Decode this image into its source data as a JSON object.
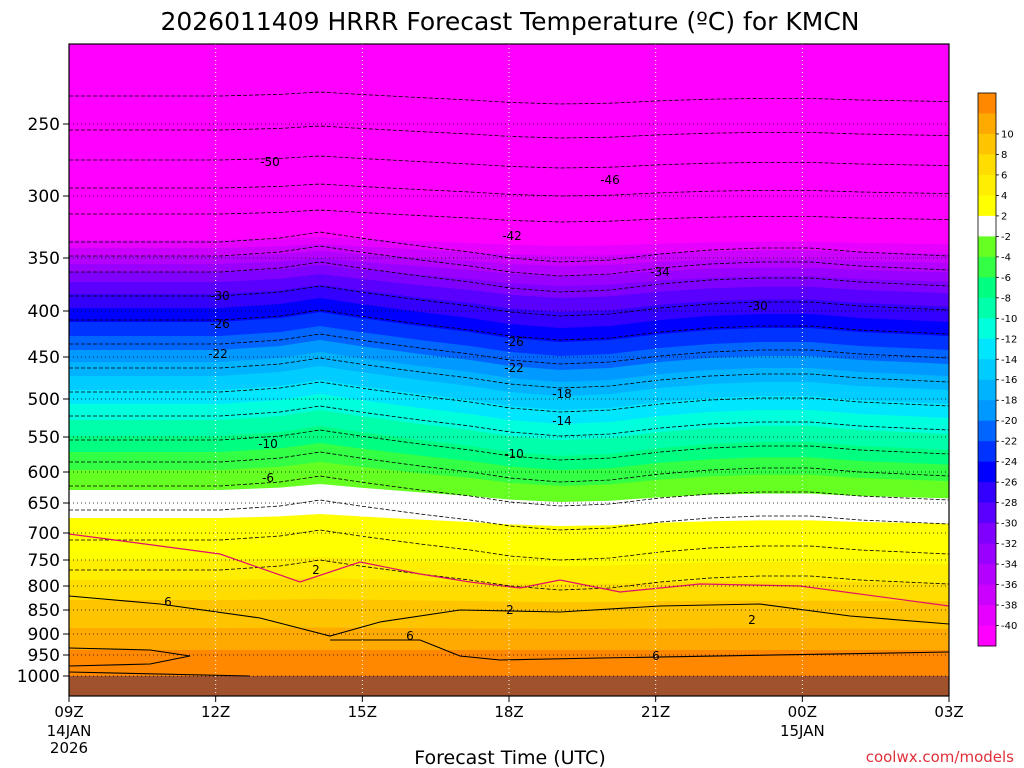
{
  "chart_data": {
    "type": "heatmap",
    "title": "2026011409 HRRR Forecast Temperature (ºC) for KMCN",
    "xlabel": "Forecast Time (UTC)",
    "ylabel": "",
    "credit": "coolwx.com/models",
    "x_ticks": [
      {
        "label": "09Z",
        "sub": [
          "14JAN",
          "2026"
        ],
        "hour": 0
      },
      {
        "label": "12Z",
        "sub": [],
        "hour": 3
      },
      {
        "label": "15Z",
        "sub": [],
        "hour": 6
      },
      {
        "label": "18Z",
        "sub": [],
        "hour": 9
      },
      {
        "label": "21Z",
        "sub": [],
        "hour": 12
      },
      {
        "label": "00Z",
        "sub": [
          "15JAN"
        ],
        "hour": 15
      },
      {
        "label": "03Z",
        "sub": [],
        "hour": 18
      }
    ],
    "y_ticks": [
      250,
      300,
      350,
      400,
      450,
      500,
      550,
      600,
      650,
      700,
      750,
      800,
      850,
      900,
      950,
      1000
    ],
    "colorbar": {
      "colors": [
        "#ff00ff",
        "#e600ff",
        "#cc00ff",
        "#b300ff",
        "#9900ff",
        "#8000ff",
        "#5a00ff",
        "#3300ff",
        "#0000ff",
        "#0033ff",
        "#0066ff",
        "#0099ff",
        "#00b3ff",
        "#00ccff",
        "#00e6ff",
        "#00ffdd",
        "#00ffaa",
        "#00ff80",
        "#33ff44",
        "#66ff22",
        "#ffffff",
        "#ffff00",
        "#ffee00",
        "#ffdd00",
        "#ffc400",
        "#ffaa00",
        "#ff8800"
      ],
      "labels": [
        "-40",
        "-38",
        "-36",
        "-34",
        "-32",
        "-30",
        "-28",
        "-26",
        "-24",
        "-22",
        "-20",
        "-18",
        "-16",
        "-14",
        "-12",
        "-10",
        "-8",
        "-6",
        "-4",
        "-2",
        "2",
        "4",
        "6",
        "8",
        "10"
      ]
    },
    "contour_labels": [
      "-50",
      "-46",
      "-42",
      "-34",
      "-30",
      "-30",
      "-26",
      "-26",
      "-22",
      "-22",
      "-18",
      "-14",
      "-10",
      "-10",
      "-6",
      "2",
      "2",
      "2",
      "6",
      "6",
      "6"
    ]
  }
}
